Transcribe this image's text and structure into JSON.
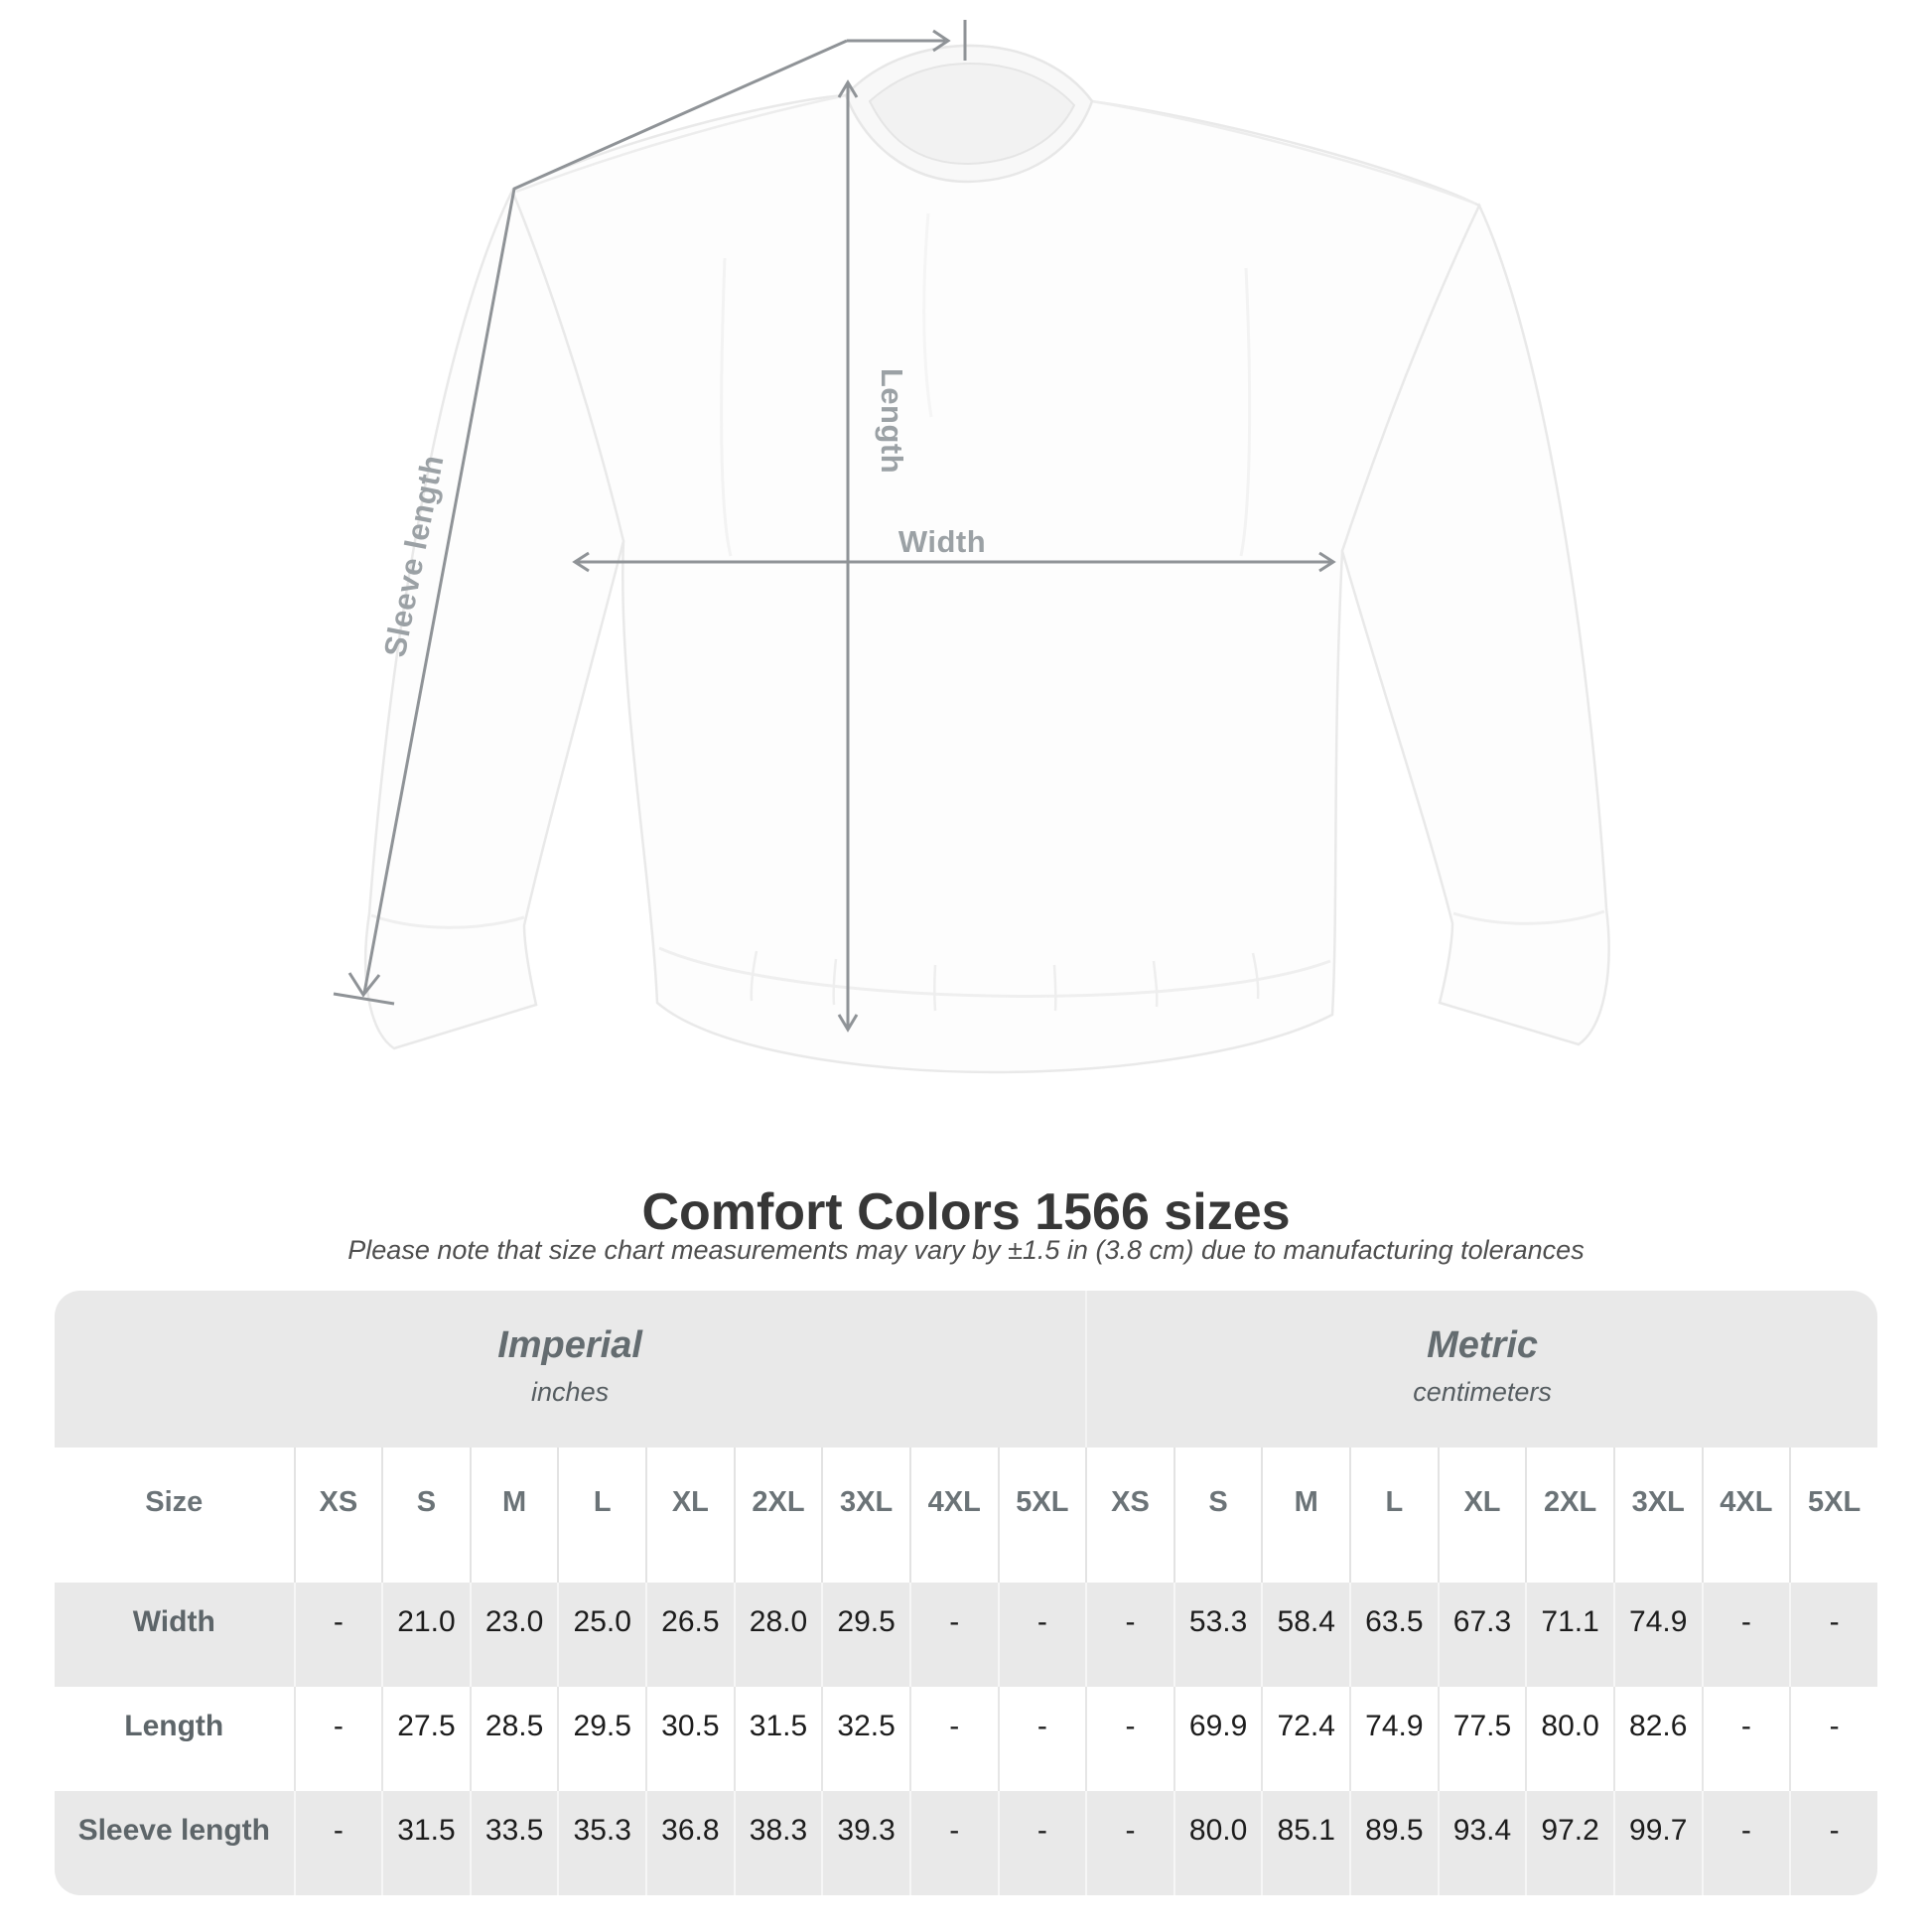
{
  "figure": {
    "garment": "white crewneck sweatshirt flat-lay",
    "labels": {
      "length": "Length",
      "width": "Width",
      "sleeve": "Sleeve length"
    }
  },
  "title": "Comfort Colors 1566 sizes",
  "subtitle": "Please note that size chart measurements may vary by ±1.5 in (3.8 cm) due to manufacturing tolerances",
  "table": {
    "size_col_header": "Size",
    "unit_groups": [
      {
        "name": "Imperial",
        "unit": "inches"
      },
      {
        "name": "Metric",
        "unit": "centimeters"
      }
    ],
    "sizes": [
      "XS",
      "S",
      "M",
      "L",
      "XL",
      "2XL",
      "3XL",
      "4XL",
      "5XL"
    ],
    "rows": [
      {
        "label": "Width",
        "imperial": [
          "-",
          "21.0",
          "23.0",
          "25.0",
          "26.5",
          "28.0",
          "29.5",
          "-",
          "-"
        ],
        "metric": [
          "-",
          "53.3",
          "58.4",
          "63.5",
          "67.3",
          "71.1",
          "74.9",
          "-",
          "-"
        ]
      },
      {
        "label": "Length",
        "imperial": [
          "-",
          "27.5",
          "28.5",
          "29.5",
          "30.5",
          "31.5",
          "32.5",
          "-",
          "-"
        ],
        "metric": [
          "-",
          "69.9",
          "72.4",
          "74.9",
          "77.5",
          "80.0",
          "82.6",
          "-",
          "-"
        ]
      },
      {
        "label": "Sleeve length",
        "imperial": [
          "-",
          "31.5",
          "33.5",
          "35.3",
          "36.8",
          "38.3",
          "39.3",
          "-",
          "-"
        ],
        "metric": [
          "-",
          "80.0",
          "85.1",
          "89.5",
          "93.4",
          "97.2",
          "99.7",
          "-",
          "-"
        ]
      }
    ]
  },
  "colors": {
    "row_band": "#e9e9e9",
    "annotation_line": "#8f9397",
    "annotation_label": "#9ba1a5",
    "title_text": "#373737",
    "value_text": "#1c1c1c",
    "header_text": "#6b7377"
  }
}
